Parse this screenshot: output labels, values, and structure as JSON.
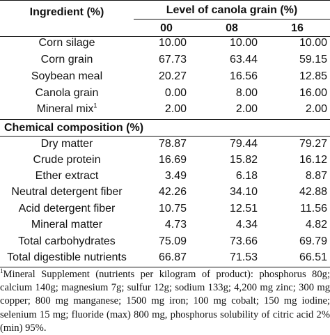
{
  "header": {
    "ingredient": "Ingredient (%)",
    "level": "Level of canola grain (%)",
    "levels": [
      "00",
      "08",
      "16"
    ]
  },
  "ingredients": [
    {
      "name": "Corn silage",
      "values": [
        "10.00",
        "10.00",
        "10.00"
      ]
    },
    {
      "name": "Corn grain",
      "values": [
        "67.73",
        "63.44",
        "59.15"
      ]
    },
    {
      "name": "Soybean meal",
      "values": [
        "20.27",
        "16.56",
        "12.85"
      ]
    },
    {
      "name": "Canola grain",
      "values": [
        "0.00",
        "8.00",
        "16.00"
      ]
    },
    {
      "name": "Mineral mix",
      "sup": "1",
      "values": [
        "2.00",
        "2.00",
        "2.00"
      ]
    }
  ],
  "section": "Chemical composition (%)",
  "composition": [
    {
      "name": "Dry matter",
      "values": [
        "78.87",
        "79.44",
        "79.27"
      ]
    },
    {
      "name": "Crude protein",
      "values": [
        "16.69",
        "15.82",
        "16.12"
      ]
    },
    {
      "name": "Ether extract",
      "values": [
        "3.49",
        "6.18",
        "8.87"
      ]
    },
    {
      "name": "Neutral detergent fiber",
      "values": [
        "42.26",
        "34.10",
        "42.88"
      ]
    },
    {
      "name": "Acid detergent fiber",
      "values": [
        "10.75",
        "12.51",
        "11.56"
      ]
    },
    {
      "name": "Mineral matter",
      "values": [
        "4.73",
        "4.34",
        "4.82"
      ]
    },
    {
      "name": "Total carbohydrates",
      "values": [
        "75.09",
        "73.66",
        "69.79"
      ]
    },
    {
      "name": "Total digestible nutrients",
      "values": [
        "66.87",
        "71.53",
        "66.51"
      ]
    }
  ],
  "footnote": {
    "marker": "1",
    "text": "Mineral Supplement (nutrients per kilogram of product): phosphorus 80g; calcium 140g; magnesium 7g; sulfur 12g; sodium 133g; 4,200 mg zinc; 300 mg copper; 800 mg manganese; 1500 mg iron; 100 mg cobalt; 150 mg iodine; selenium 15 mg; fluoride (max) 800 mg, phosphorus solubility of citric acid 2% (min) 95%."
  }
}
